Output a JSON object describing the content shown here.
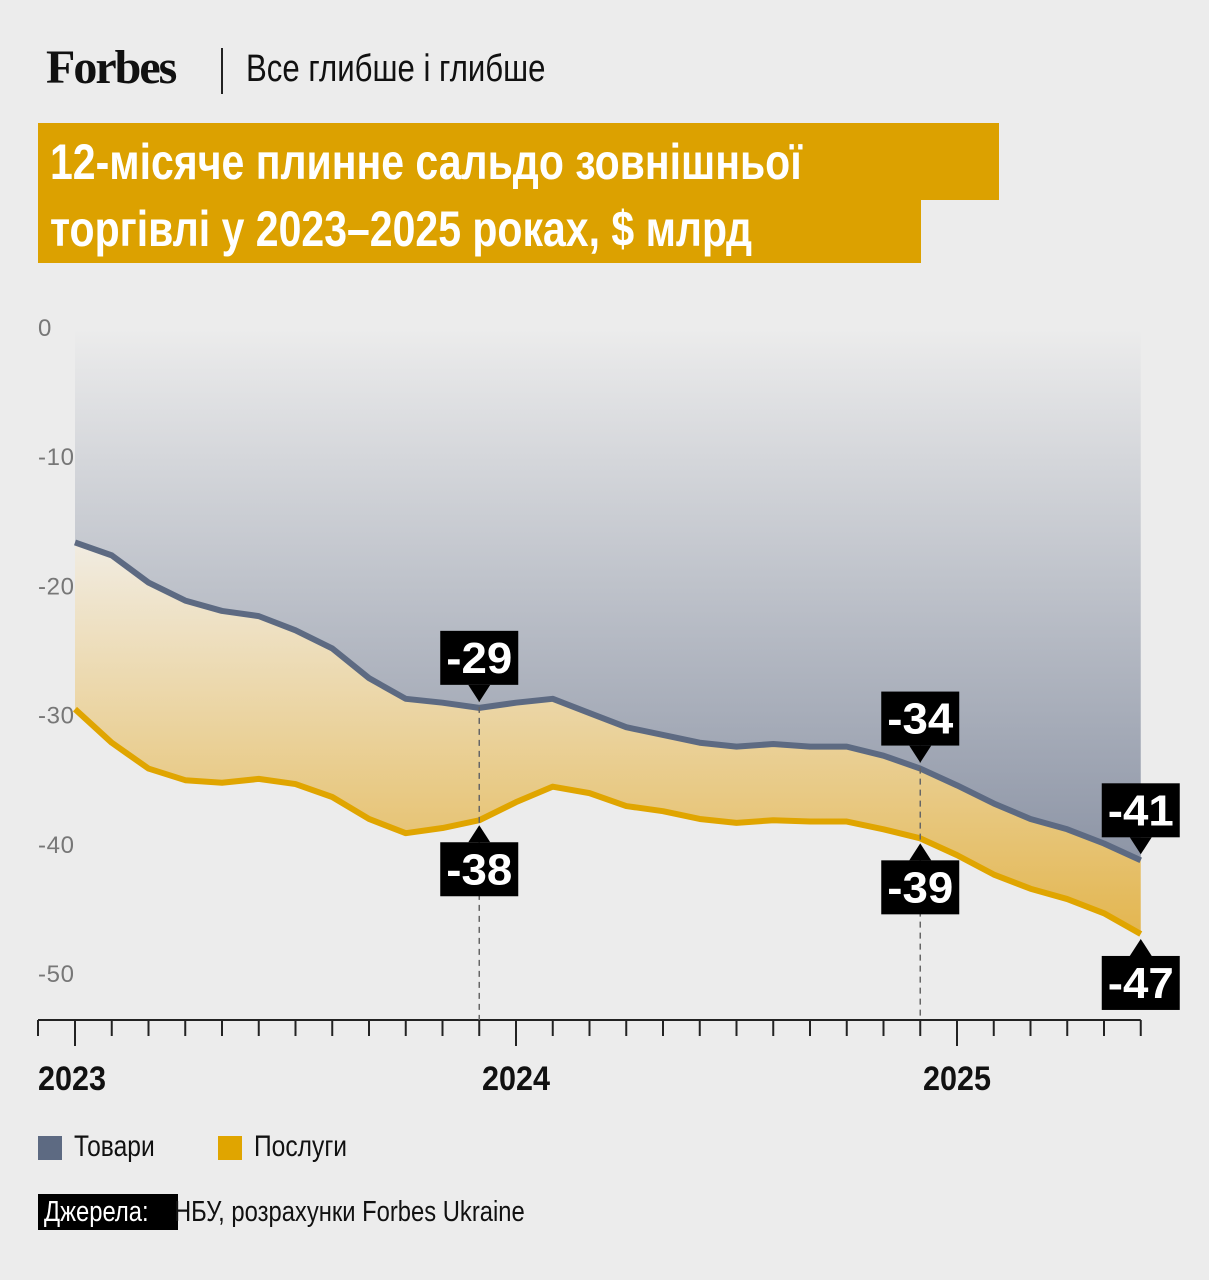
{
  "header": {
    "logo": "Forbes",
    "tagline": "Все глибше і глибше"
  },
  "title": {
    "line1": "12-місяче плинне сальдо зовнішньої",
    "line2": "торгівлі у 2023–2025 роках, $ млрд"
  },
  "legend": [
    {
      "label": "Товари",
      "color": "#5d6a82"
    },
    {
      "label": "Послуги",
      "color": "#e0a500"
    }
  ],
  "source": {
    "tag": "Джерела:",
    "text": "НБУ, розрахунки Forbes Ukraine"
  },
  "chart_data": {
    "type": "area",
    "x_start": "2023-01",
    "x_end": "2025-06",
    "x_step": "month",
    "x_ticks": [
      "2023",
      "2024",
      "2025"
    ],
    "y_ticks": [
      "0",
      "-10",
      "-20",
      "-30",
      "-40",
      "-50"
    ],
    "ylim": [
      -52,
      0
    ],
    "series": [
      {
        "name": "Товари",
        "color": "#5d6a82",
        "values": [
          -16.6,
          -17.6,
          -19.7,
          -21.1,
          -21.9,
          -22.3,
          -23.4,
          -24.8,
          -27.1,
          -28.7,
          -29.0,
          -29.4,
          -29.0,
          -28.7,
          -29.8,
          -30.9,
          -31.5,
          -32.1,
          -32.4,
          -32.2,
          -32.4,
          -32.4,
          -33.1,
          -34.1,
          -35.4,
          -36.8,
          -38.0,
          -38.8,
          -39.9,
          -41.2
        ]
      },
      {
        "name": "Послуги",
        "color": "#e0a500",
        "values": [
          -29.5,
          -32.1,
          -34.1,
          -35.0,
          -35.2,
          -34.9,
          -35.3,
          -36.3,
          -38.0,
          -39.1,
          -38.7,
          -38.1,
          -36.7,
          -35.5,
          -36.0,
          -37.0,
          -37.4,
          -38.0,
          -38.3,
          -38.1,
          -38.2,
          -38.2,
          -38.8,
          -39.5,
          -40.8,
          -42.3,
          -43.4,
          -44.2,
          -45.3,
          -46.9
        ]
      }
    ],
    "annotations": [
      {
        "series": 0,
        "index": 11,
        "label": "-29",
        "dir": "above",
        "guide": true
      },
      {
        "series": 1,
        "index": 11,
        "label": "-38",
        "dir": "below"
      },
      {
        "series": 0,
        "index": 23,
        "label": "-34",
        "dir": "above",
        "guide": true
      },
      {
        "series": 1,
        "index": 23,
        "label": "-39",
        "dir": "below"
      },
      {
        "series": 0,
        "index": 29,
        "label": "-41",
        "dir": "above"
      },
      {
        "series": 1,
        "index": 29,
        "label": "-47",
        "dir": "below"
      }
    ]
  }
}
